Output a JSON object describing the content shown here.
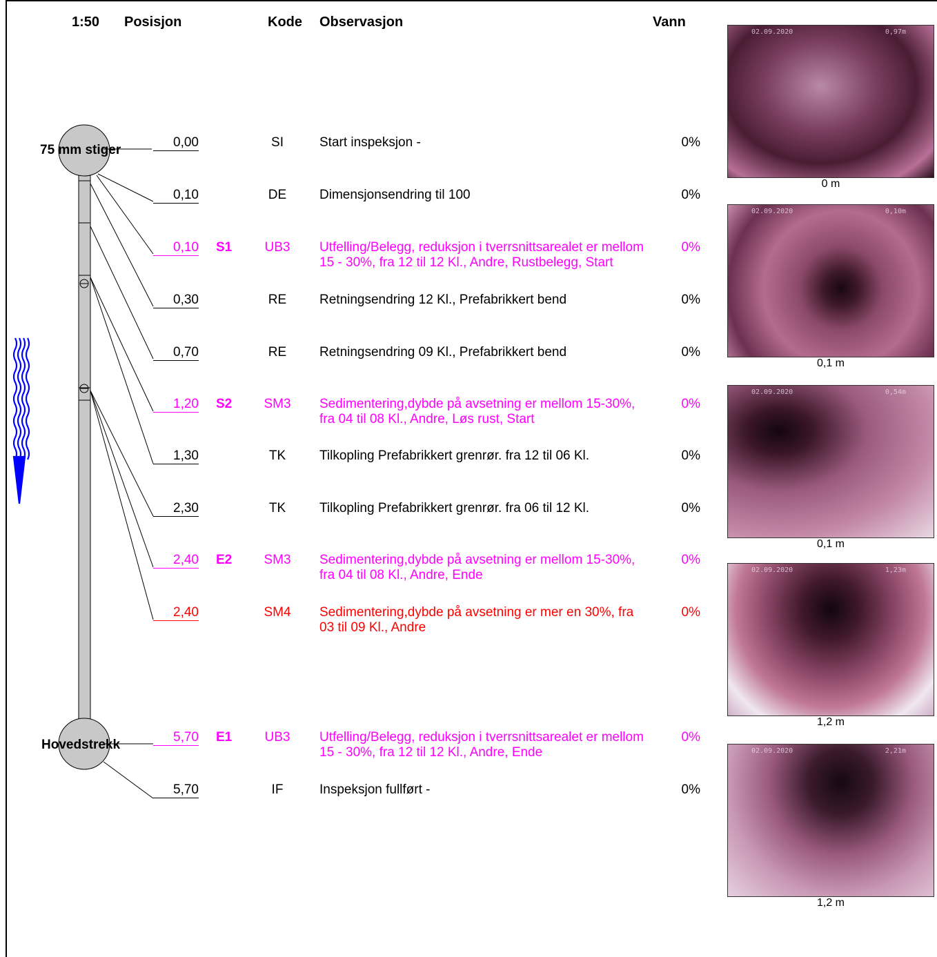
{
  "header": {
    "scale": "1:50",
    "position": "Posisjon",
    "code": "Kode",
    "observation": "Observasjon",
    "water": "Vann"
  },
  "manholes": {
    "start": "75 mm stiger",
    "end": "Hovedstrekk"
  },
  "colors": {
    "normal": "#000000",
    "severity_magenta": "#ff00ff",
    "severity_red": "#ff0000",
    "flow_arrow": "#0000ff",
    "pipe_fill": "#c8c8c8"
  },
  "observations": [
    {
      "position": "0,00",
      "severity": "",
      "code": "SI",
      "text": "Start inspeksjon -",
      "water": "0%",
      "color": "normal"
    },
    {
      "position": "0,10",
      "severity": "",
      "code": "DE",
      "text": "Dimensjonsendring til 100",
      "water": "0%",
      "color": "normal"
    },
    {
      "position": "0,10",
      "severity": "S1",
      "code": "UB3",
      "text": "Utfelling/Belegg, reduksjon i tverrsnittsarealet er mellom 15 - 30%, fra 12 til 12 Kl., Andre, Rustbelegg, Start",
      "water": "0%",
      "color": "magenta"
    },
    {
      "position": "0,30",
      "severity": "",
      "code": "RE",
      "text": "Retningsendring  12 Kl., Prefabrikkert bend",
      "water": "0%",
      "color": "normal"
    },
    {
      "position": "0,70",
      "severity": "",
      "code": "RE",
      "text": "Retningsendring  09 Kl., Prefabrikkert bend",
      "water": "0%",
      "color": "normal"
    },
    {
      "position": "1,20",
      "severity": "S2",
      "code": "SM3",
      "text": "Sedimentering,dybde på avsetning er mellom 15-30%, fra 04 til 08 Kl., Andre, Løs rust, Start",
      "water": "0%",
      "color": "magenta"
    },
    {
      "position": "1,30",
      "severity": "",
      "code": "TK",
      "text": "Tilkopling Prefabrikkert grenrør. fra 12 til 06 Kl.",
      "water": "0%",
      "color": "normal"
    },
    {
      "position": "2,30",
      "severity": "",
      "code": "TK",
      "text": "Tilkopling Prefabrikkert grenrør. fra 06 til 12 Kl.",
      "water": "0%",
      "color": "normal"
    },
    {
      "position": "2,40",
      "severity": "E2",
      "code": "SM3",
      "text": "Sedimentering,dybde på avsetning er mellom 15-30%, fra 04 til 08 Kl., Andre, Ende",
      "water": "0%",
      "color": "magenta"
    },
    {
      "position": "2,40",
      "severity": "",
      "code": "SM4",
      "text": "Sedimentering,dybde på avsetning er mer en 30%, fra 03 til 09 Kl., Andre",
      "water": "0%",
      "color": "red"
    },
    {
      "position": "5,70",
      "severity": "E1",
      "code": "UB3",
      "text": "Utfelling/Belegg, reduksjon i tverrsnittsarealet er mellom 15 - 30%, fra 12 til 12 Kl., Andre, Ende",
      "water": "0%",
      "color": "magenta"
    },
    {
      "position": "5,70",
      "severity": "",
      "code": "IF",
      "text": "Inspeksjon fullført -",
      "water": "0%",
      "color": "normal"
    }
  ],
  "photos": [
    {
      "date": "02.09.2020",
      "meter": "0,97m",
      "caption": "0 m"
    },
    {
      "date": "02.09.2020",
      "meter": "0,10m",
      "caption": "0,1 m"
    },
    {
      "date": "02.09.2020",
      "meter": "0,54m",
      "caption": "0,1 m"
    },
    {
      "date": "02.09.2020",
      "meter": "1,23m",
      "caption": "1,2 m"
    },
    {
      "date": "02.09.2020",
      "meter": "2,21m",
      "caption": "1,2 m"
    }
  ]
}
